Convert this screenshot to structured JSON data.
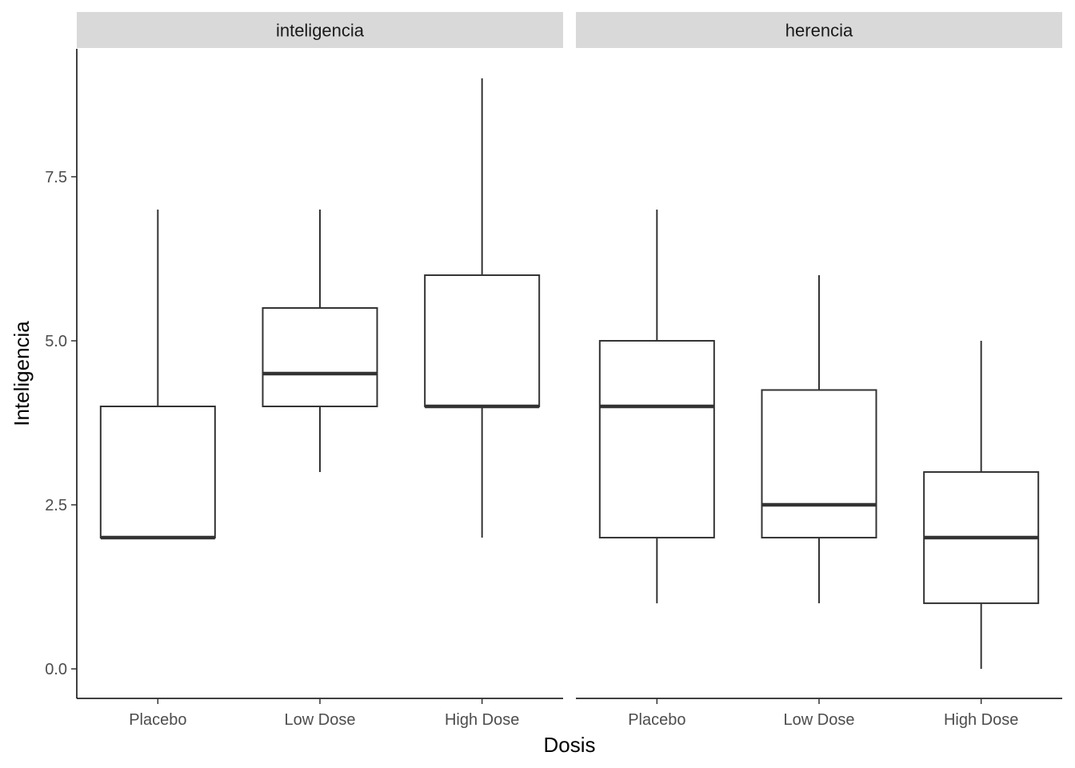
{
  "chart_data": {
    "type": "boxplot",
    "xlabel": "Dosis",
    "ylabel": "Inteligencia",
    "ylim": [
      -0.45,
      9.45
    ],
    "yticks": [
      0.0,
      2.5,
      5.0,
      7.5
    ],
    "ytick_labels": [
      "0.0",
      "2.5",
      "5.0",
      "7.5"
    ],
    "categories": [
      "Placebo",
      "Low Dose",
      "High Dose"
    ],
    "grid": false,
    "legend": "none",
    "colors": {
      "box_stroke": "#333333",
      "box_fill": "#ffffff",
      "strip_fill": "#d9d9d9"
    },
    "facets": [
      {
        "name": "inteligencia",
        "boxes": [
          {
            "category": "Placebo",
            "min": 2,
            "q1": 2,
            "median": 2,
            "q3": 4,
            "max": 7
          },
          {
            "category": "Low Dose",
            "min": 3,
            "q1": 4,
            "median": 4.5,
            "q3": 5.5,
            "max": 7
          },
          {
            "category": "High Dose",
            "min": 2,
            "q1": 4,
            "median": 4,
            "q3": 6,
            "max": 9
          }
        ]
      },
      {
        "name": "herencia",
        "boxes": [
          {
            "category": "Placebo",
            "min": 1,
            "q1": 2,
            "median": 4,
            "q3": 5,
            "max": 7
          },
          {
            "category": "Low Dose",
            "min": 1,
            "q1": 2,
            "median": 2.5,
            "q3": 4.25,
            "max": 6
          },
          {
            "category": "High Dose",
            "min": 0,
            "q1": 1,
            "median": 2,
            "q3": 3,
            "max": 5
          }
        ]
      }
    ]
  }
}
